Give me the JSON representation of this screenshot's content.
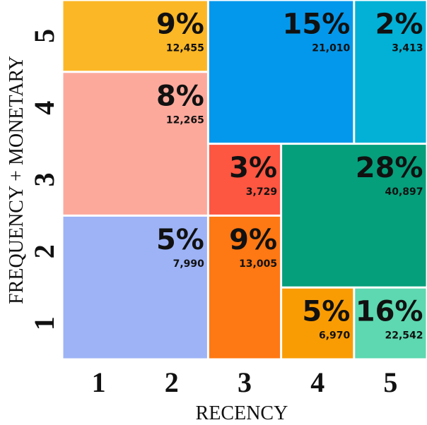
{
  "chart_data": {
    "type": "heatmap",
    "title": "",
    "xlabel": "RECENCY",
    "ylabel": "FREQUENCY + MONETARY",
    "x_ticks": [
      "1",
      "2",
      "3",
      "4",
      "5"
    ],
    "y_ticks": [
      "1",
      "2",
      "3",
      "4",
      "5"
    ],
    "segments": [
      {
        "recency": [
          1,
          2
        ],
        "fm": [
          5,
          5
        ],
        "percent": "9%",
        "count": "12,455",
        "color": "#fbb726"
      },
      {
        "recency": [
          1,
          2
        ],
        "fm": [
          3,
          4
        ],
        "percent": "8%",
        "count": "12,265",
        "color": "#fca99c"
      },
      {
        "recency": [
          1,
          2
        ],
        "fm": [
          1,
          2
        ],
        "percent": "5%",
        "count": "7,990",
        "color": "#9db3f6"
      },
      {
        "recency": [
          3,
          4
        ],
        "fm": [
          4,
          5
        ],
        "percent": "15%",
        "count": "21,010",
        "color": "#0398ec"
      },
      {
        "recency": [
          5,
          5
        ],
        "fm": [
          4,
          5
        ],
        "percent": "2%",
        "count": "3,413",
        "color": "#02b1d5"
      },
      {
        "recency": [
          3,
          3
        ],
        "fm": [
          3,
          3
        ],
        "percent": "3%",
        "count": "3,729",
        "color": "#fd5641"
      },
      {
        "recency": [
          3,
          3
        ],
        "fm": [
          1,
          2
        ],
        "percent": "9%",
        "count": "13,005",
        "color": "#fe7813"
      },
      {
        "recency": [
          4,
          5
        ],
        "fm": [
          2,
          3
        ],
        "percent": "28%",
        "count": "40,897",
        "color": "#059f7b"
      },
      {
        "recency": [
          4,
          4
        ],
        "fm": [
          1,
          1
        ],
        "percent": "5%",
        "count": "6,970",
        "color": "#f99c04"
      },
      {
        "recency": [
          5,
          5
        ],
        "fm": [
          1,
          1
        ],
        "percent": "16%",
        "count": "22,542",
        "color": "#5dd8b0"
      }
    ]
  }
}
